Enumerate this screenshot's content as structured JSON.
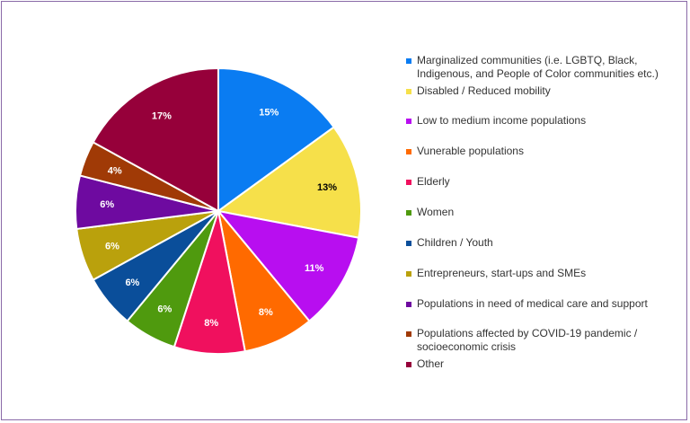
{
  "chart_data": {
    "type": "pie",
    "title": "",
    "start": "12 o'clock, clockwise",
    "legend_position": "right",
    "slices": [
      {
        "label": "Marginalized communities (i.e. LGBTQ, Black, Indigenous, and People of Color communities etc.)",
        "value": 15,
        "display": "15%",
        "color": "#0a7cf2",
        "text_color": "#ffffff"
      },
      {
        "label": "Disabled / Reduced mobility",
        "value": 13,
        "display": "13%",
        "color": "#f6e04a",
        "text_color": "#000000"
      },
      {
        "label": "Low to medium income populations",
        "value": 11,
        "display": "11%",
        "color": "#b80ef0",
        "text_color": "#ffffff"
      },
      {
        "label": "Vunerable populations",
        "value": 8,
        "display": "8%",
        "color": "#ff6a00",
        "text_color": "#ffffff"
      },
      {
        "label": "Elderly",
        "value": 8,
        "display": "8%",
        "color": "#f0105e",
        "text_color": "#ffffff"
      },
      {
        "label": "Women",
        "value": 6,
        "display": "6%",
        "color": "#4f9a0e",
        "text_color": "#ffffff"
      },
      {
        "label": "Children / Youth",
        "value": 6,
        "display": "6%",
        "color": "#0a4e9a",
        "text_color": "#ffffff"
      },
      {
        "label": "Entrepreneurs, start-ups and SMEs",
        "value": 6,
        "display": "6%",
        "color": "#baa10c",
        "text_color": "#ffffff"
      },
      {
        "label": "Populations in need of medical care and support",
        "value": 6,
        "display": "6%",
        "color": "#6e0aa0",
        "text_color": "#ffffff"
      },
      {
        "label": "Populations affected by COVID-19 pandemic / socioeconomic crisis",
        "value": 4,
        "display": "4%",
        "color": "#a03a06",
        "text_color": "#ffffff"
      },
      {
        "label": "Other",
        "value": 17,
        "display": "17%",
        "color": "#96003a",
        "text_color": "#ffffff"
      }
    ]
  }
}
